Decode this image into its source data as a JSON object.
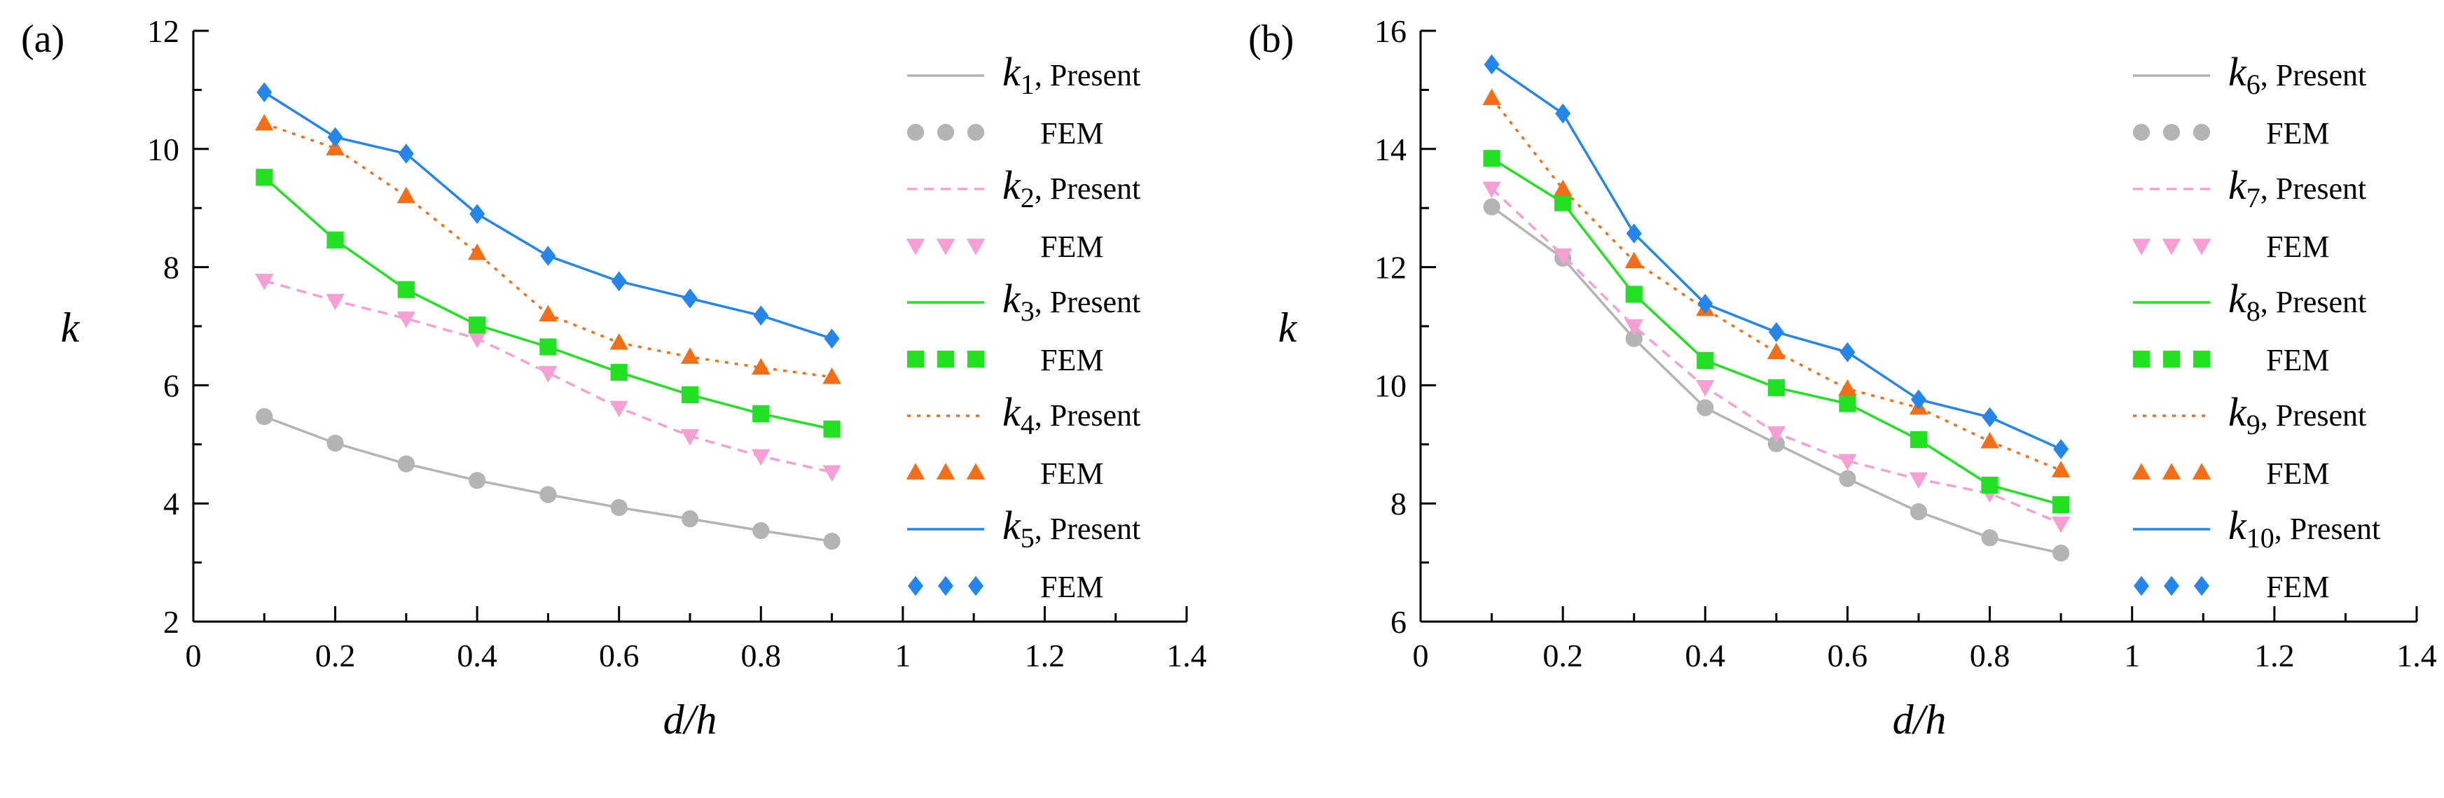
{
  "chart_data": [
    {
      "type": "line",
      "panel_label": "(a)",
      "xlabel": "d/h",
      "ylabel": "k",
      "xlim": [
        0,
        1.4
      ],
      "ylim": [
        2,
        12
      ],
      "x_ticks": [
        "0",
        "0.2",
        "0.4",
        "0.6",
        "0.8",
        "1",
        "1.2",
        "1.4"
      ],
      "y_ticks": [
        "2",
        "4",
        "6",
        "8",
        "10",
        "12"
      ],
      "x": [
        0.1,
        0.2,
        0.3,
        0.4,
        0.5,
        0.6,
        0.7,
        0.8,
        0.9
      ],
      "legend_present": "Present",
      "legend_fem": "FEM",
      "series": [
        {
          "name": "k",
          "sub": "1",
          "color": "#b4b4b4",
          "line": "solid",
          "marker": "circle",
          "present": [
            5.47,
            5.02,
            4.67,
            4.39,
            4.15,
            3.93,
            3.74,
            3.54,
            3.36
          ],
          "fem": [
            5.47,
            5.02,
            4.67,
            4.39,
            4.15,
            3.93,
            3.74,
            3.54,
            3.36
          ]
        },
        {
          "name": "k",
          "sub": "2",
          "color": "#f59fd2",
          "line": "dashed",
          "marker": "triangle-down",
          "present": [
            7.77,
            7.43,
            7.13,
            6.79,
            6.21,
            5.62,
            5.14,
            4.8,
            4.53
          ],
          "fem": [
            7.77,
            7.43,
            7.13,
            6.79,
            6.21,
            5.62,
            5.14,
            4.8,
            4.53
          ]
        },
        {
          "name": "k",
          "sub": "3",
          "color": "#22e022",
          "line": "solid",
          "marker": "square",
          "present": [
            9.52,
            8.46,
            7.62,
            7.02,
            6.65,
            6.22,
            5.84,
            5.52,
            5.26
          ],
          "fem": [
            9.52,
            8.46,
            7.62,
            7.02,
            6.65,
            6.22,
            5.84,
            5.52,
            5.26
          ]
        },
        {
          "name": "k",
          "sub": "4",
          "color": "#f46d17",
          "line": "dotted",
          "marker": "triangle-up",
          "present": [
            10.43,
            10.01,
            9.2,
            8.24,
            7.2,
            6.72,
            6.48,
            6.3,
            6.14
          ],
          "fem": [
            10.43,
            10.01,
            9.2,
            8.24,
            7.2,
            6.72,
            6.48,
            6.3,
            6.14
          ]
        },
        {
          "name": "k",
          "sub": "5",
          "color": "#2486ea",
          "line": "solid",
          "marker": "diamond",
          "present": [
            10.96,
            10.2,
            9.92,
            8.9,
            8.19,
            7.76,
            7.47,
            7.18,
            6.79
          ],
          "fem": [
            10.96,
            10.2,
            9.92,
            8.9,
            8.19,
            7.76,
            7.47,
            7.18,
            6.79
          ]
        }
      ]
    },
    {
      "type": "line",
      "panel_label": "(b)",
      "xlabel": "d/h",
      "ylabel": "k",
      "xlim": [
        0,
        1.4
      ],
      "ylim": [
        6,
        16
      ],
      "x_ticks": [
        "0",
        "0.2",
        "0.4",
        "0.6",
        "0.8",
        "1",
        "1.2",
        "1.4"
      ],
      "y_ticks": [
        "6",
        "8",
        "10",
        "12",
        "14",
        "16"
      ],
      "x": [
        0.1,
        0.2,
        0.3,
        0.4,
        0.5,
        0.6,
        0.7,
        0.8,
        0.9
      ],
      "legend_present": "Present",
      "legend_fem": "FEM",
      "series": [
        {
          "name": "k",
          "sub": "6",
          "color": "#b4b4b4",
          "line": "solid",
          "marker": "circle",
          "present": [
            13.02,
            12.15,
            10.79,
            9.62,
            9.01,
            8.42,
            7.86,
            7.42,
            7.16
          ],
          "fem": [
            13.02,
            12.15,
            10.79,
            9.62,
            9.01,
            8.42,
            7.86,
            7.42,
            7.16
          ]
        },
        {
          "name": "k",
          "sub": "7",
          "color": "#f59fd2",
          "line": "dashed",
          "marker": "triangle-down",
          "present": [
            13.33,
            12.2,
            11.0,
            9.97,
            9.19,
            8.72,
            8.41,
            8.17,
            7.66
          ],
          "fem": [
            13.33,
            12.2,
            11.0,
            9.97,
            9.19,
            8.72,
            8.41,
            8.17,
            7.66
          ]
        },
        {
          "name": "k",
          "sub": "8",
          "color": "#22e022",
          "line": "solid",
          "marker": "square",
          "present": [
            13.84,
            13.09,
            11.54,
            10.42,
            9.96,
            9.69,
            9.08,
            8.31,
            7.98
          ],
          "fem": [
            13.84,
            13.09,
            11.54,
            10.42,
            9.96,
            9.69,
            9.08,
            8.31,
            7.98
          ]
        },
        {
          "name": "k",
          "sub": "9",
          "color": "#f46d17",
          "line": "dotted",
          "marker": "triangle-up",
          "present": [
            14.86,
            13.32,
            12.1,
            11.29,
            10.56,
            9.94,
            9.62,
            9.05,
            8.56
          ],
          "fem": [
            14.86,
            13.32,
            12.1,
            11.29,
            10.56,
            9.94,
            9.62,
            9.05,
            8.56
          ]
        },
        {
          "name": "k",
          "sub": "10",
          "color": "#2486ea",
          "line": "solid",
          "marker": "diamond",
          "present": [
            15.43,
            14.6,
            12.57,
            11.38,
            10.9,
            10.56,
            9.76,
            9.46,
            8.92
          ],
          "fem": [
            15.43,
            14.6,
            12.57,
            11.38,
            10.9,
            10.56,
            9.76,
            9.46,
            8.92
          ]
        }
      ]
    }
  ]
}
